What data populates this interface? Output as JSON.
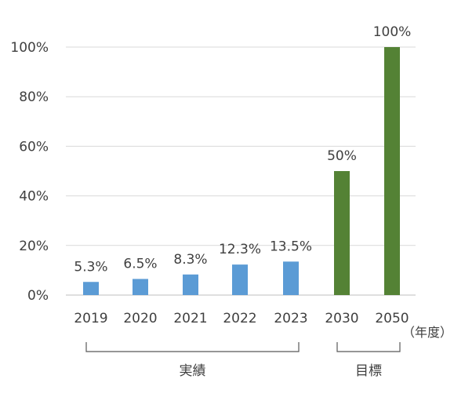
{
  "chart_data": {
    "type": "bar",
    "categories": [
      "2019",
      "2020",
      "2021",
      "2022",
      "2023",
      "2030",
      "2050"
    ],
    "values": [
      5.3,
      6.5,
      8.3,
      12.3,
      13.5,
      50,
      100
    ],
    "data_labels": [
      "5.3%",
      "6.5%",
      "8.3%",
      "12.3%",
      "13.5%",
      "50%",
      "100%"
    ],
    "bar_colors": [
      "#5b9bd5",
      "#5b9bd5",
      "#5b9bd5",
      "#5b9bd5",
      "#5b9bd5",
      "#548235",
      "#548235"
    ],
    "ylim": [
      0,
      100
    ],
    "yticks": [
      0,
      20,
      40,
      60,
      80,
      100
    ],
    "ytick_labels": [
      "0%",
      "20%",
      "40%",
      "60%",
      "80%",
      "100%"
    ],
    "grid": true,
    "grid_color": "#d9d9d9",
    "x_unit_label": "（年度）",
    "groups": [
      {
        "label": "実績",
        "from": 0,
        "to": 4
      },
      {
        "label": "目標",
        "from": 5,
        "to": 6
      }
    ],
    "title": "",
    "xlabel": "",
    "ylabel": ""
  }
}
